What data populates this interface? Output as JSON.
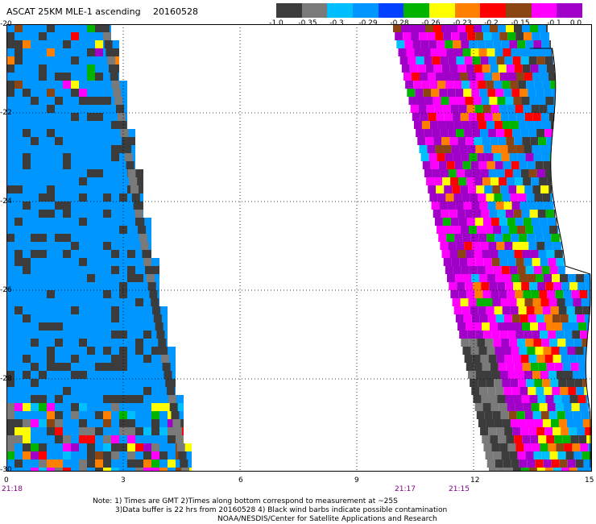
{
  "header": {
    "title": "ASCAT 25KM MLE-1 ascending",
    "date": "20160528"
  },
  "legend": {
    "labels": [
      "-1.0",
      "-0.35",
      "-0.3",
      "-0.29",
      "-0.28",
      "-0.26",
      "-0.23",
      "-0.2",
      "-0.15",
      "-0.1",
      "0.0"
    ],
    "colors": [
      "#3c3c3c",
      "#7a7a7a",
      "#00bfff",
      "#0096ff",
      "#0040ff",
      "#00b400",
      "#ffff00",
      "#ff8000",
      "#ff0000",
      "#8b4513",
      "#ff00ff",
      "#a000c8"
    ]
  },
  "axes": {
    "x_ticks": [
      "0",
      "3",
      "6",
      "9",
      "12",
      "15"
    ],
    "y_ticks": [
      "-20",
      "-22",
      "-24",
      "-26",
      "-28",
      "-30"
    ]
  },
  "times": [
    "21:18",
    "21:17",
    "21:15"
  ],
  "notes": {
    "line1": "Note: 1) Times are GMT 2)Times along bottom correspond to measurement at ~25S",
    "line2": "3)Data buffer is 22 hrs from 20160528 4) Black wind barbs indicate possible contamination",
    "line3": "NOAA/NESDIS/Center for Satellite Applications and Research"
  },
  "map_data": {
    "lon_range": [
      0,
      15
    ],
    "lat_range": [
      -20,
      -30
    ],
    "swaths": [
      {
        "name": "west",
        "lon_min": 0,
        "lon_max_top": 2.7,
        "lon_max_bottom": 4.8
      },
      {
        "name": "east",
        "lon_min_top": 10.0,
        "lon_min_bottom": 12.4,
        "coast": true
      }
    ]
  },
  "colors": {
    "ocean": "#0096ff",
    "magenta": "#ff00ff",
    "purple": "#a000c8",
    "time": "#800080"
  }
}
